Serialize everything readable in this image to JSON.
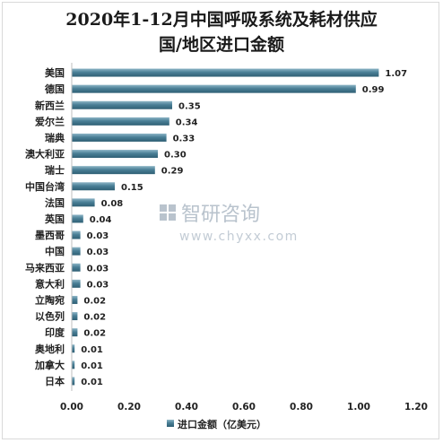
{
  "chart_data": {
    "type": "bar",
    "orientation": "horizontal",
    "title_line1": "2020年1-12月中国呼吸系统及耗材供应",
    "title_line2": "国/地区进口金额",
    "categories": [
      "美国",
      "德国",
      "新西兰",
      "爱尔兰",
      "瑞典",
      "澳大利亚",
      "瑞士",
      "中国台湾",
      "法国",
      "英国",
      "墨西哥",
      "中国",
      "马来西亚",
      "意大利",
      "立陶宛",
      "以色列",
      "印度",
      "奥地利",
      "加拿大",
      "日本"
    ],
    "series": [
      {
        "name": "进口金额（亿美元）",
        "values": [
          1.07,
          0.99,
          0.35,
          0.34,
          0.33,
          0.3,
          0.29,
          0.15,
          0.08,
          0.04,
          0.03,
          0.03,
          0.03,
          0.03,
          0.02,
          0.02,
          0.02,
          0.01,
          0.01,
          0.01
        ]
      }
    ],
    "data_labels": [
      "1.07",
      "0.99",
      "0.35",
      "0.34",
      "0.33",
      "0.30",
      "0.29",
      "0.15",
      "0.08",
      "0.04",
      "0.03",
      "0.03",
      "0.03",
      "0.03",
      "0.02",
      "0.02",
      "0.02",
      "0.01",
      "0.01",
      "0.01"
    ],
    "x_ticks": [
      "0.00",
      "0.20",
      "0.40",
      "0.60",
      "0.80",
      "1.00",
      "1.20"
    ],
    "xlim": [
      0,
      1.2
    ],
    "grid": false,
    "legend_position": "bottom",
    "bar_color": "#4a7f96"
  },
  "watermark": {
    "cn": "智研咨询",
    "url": "www.chyxx.com"
  }
}
